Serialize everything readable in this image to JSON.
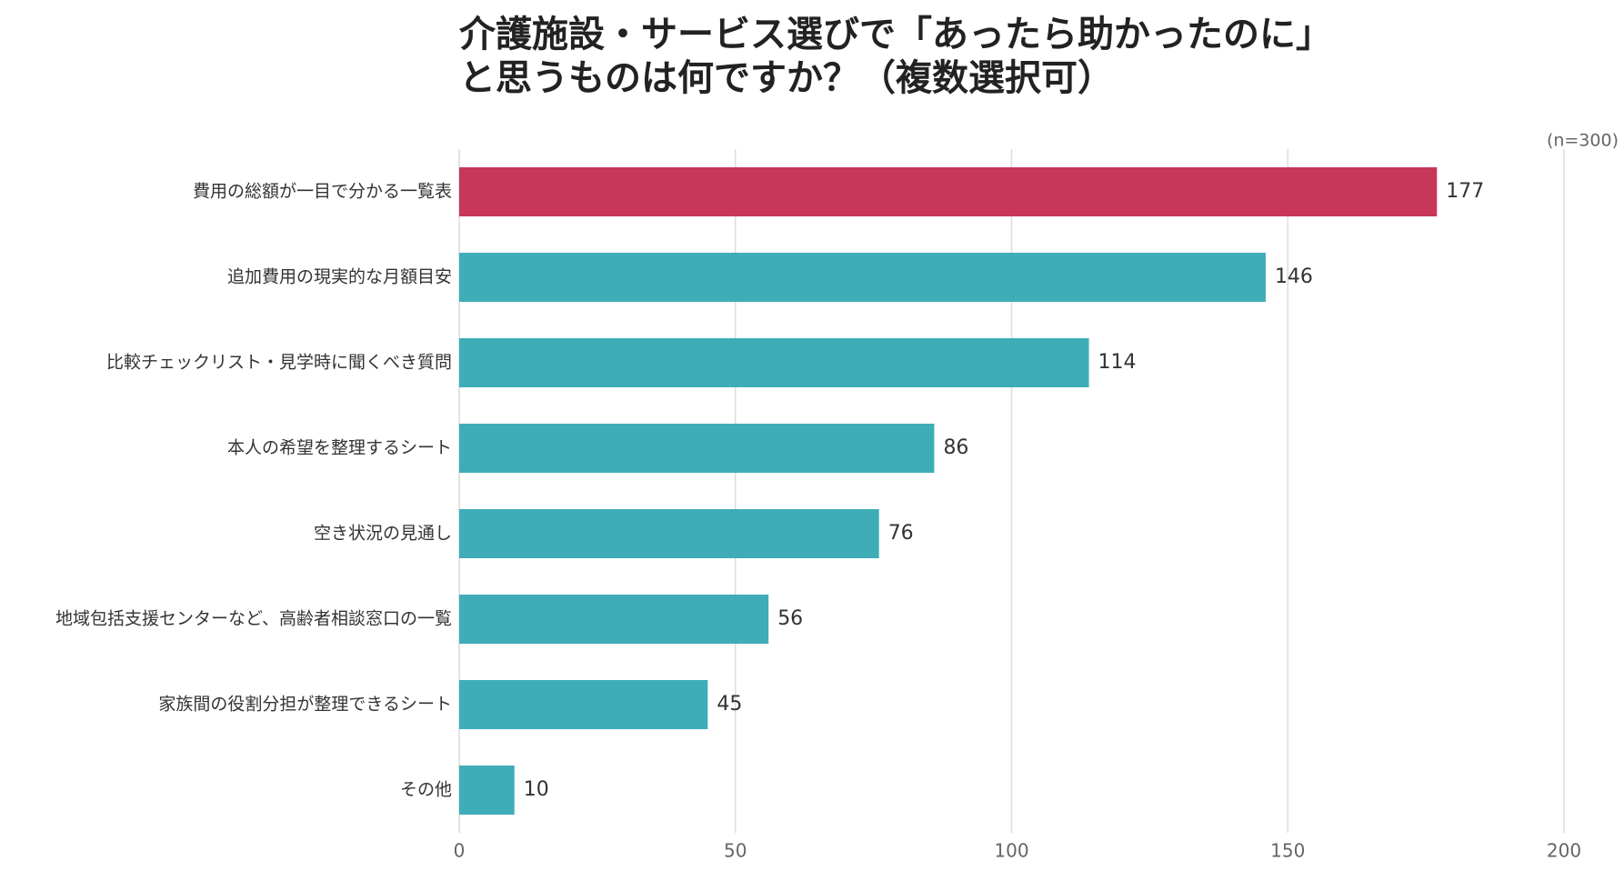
{
  "chart_data": {
    "type": "bar",
    "orientation": "horizontal",
    "title": [
      "介護施設・サービス選びで「あったら助かったのに」",
      "と思うものは何ですか？（複数選択可）"
    ],
    "note": "(n=300)",
    "categories": [
      "費用の総額が一目で分かる一覧表",
      "追加費用の現実的な月額目安",
      "比較チェックリスト・見学時に聞くべき質問",
      "本人の希望を整理するシート",
      "空き状況の見通し",
      "地域包括支援センターなど、高齢者相談窓口の一覧",
      "家族間の役割分担が整理できるシート",
      "その他"
    ],
    "values": [
      177,
      146,
      114,
      86,
      76,
      56,
      45,
      10
    ],
    "colors": [
      "#c8365a",
      "#3eadb7",
      "#3eadb7",
      "#3eadb7",
      "#3eadb7",
      "#3eadb7",
      "#3eadb7",
      "#3eadb7"
    ],
    "xlim": [
      0,
      200
    ],
    "xticks": [
      0,
      50,
      100,
      150,
      200
    ],
    "grid": true
  }
}
